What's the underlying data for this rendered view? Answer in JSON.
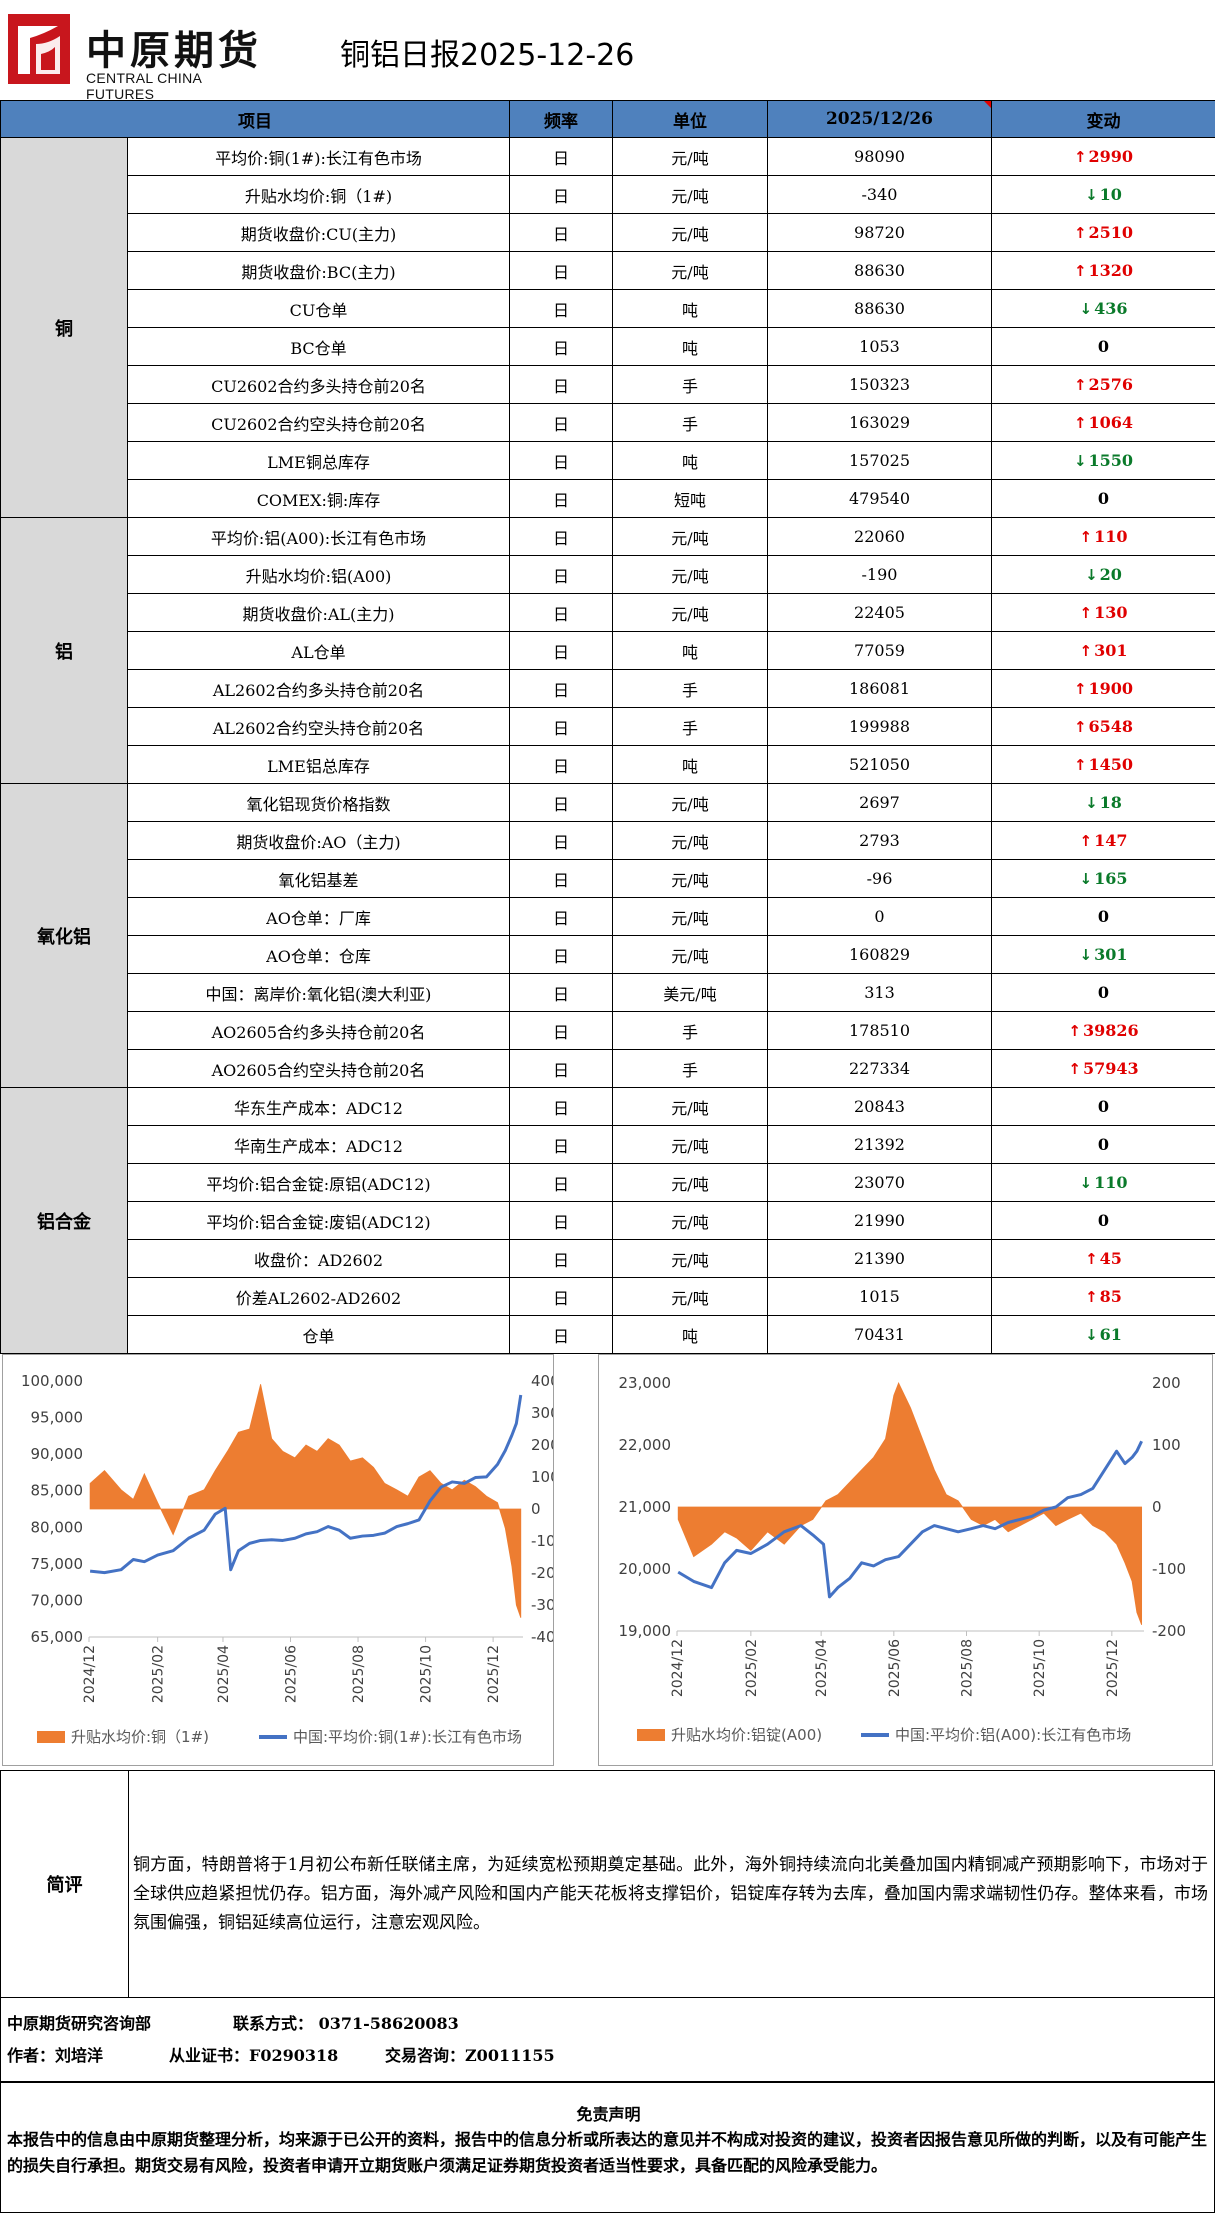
{
  "header": {
    "logo_cn": "中原期货",
    "logo_en": "CENTRAL CHINA FUTURES",
    "title": "铜铝日报2025-12-26"
  },
  "table": {
    "headers": [
      "项目",
      "频率",
      "单位",
      "2025/12/26",
      "变动"
    ],
    "groups": [
      {
        "name": "铜",
        "rows": [
          {
            "item": "平均价:铜(1#):长江有色市场",
            "freq": "日",
            "unit": "元/吨",
            "value": "98090",
            "change": "2990",
            "dir": "up"
          },
          {
            "item": "升贴水均价:铜（1#)",
            "freq": "日",
            "unit": "元/吨",
            "value": "-340",
            "change": "10",
            "dir": "down"
          },
          {
            "item": "期货收盘价:CU(主力)",
            "freq": "日",
            "unit": "元/吨",
            "value": "98720",
            "change": "2510",
            "dir": "up"
          },
          {
            "item": "期货收盘价:BC(主力)",
            "freq": "日",
            "unit": "元/吨",
            "value": "88630",
            "change": "1320",
            "dir": "up"
          },
          {
            "item": "CU仓单",
            "freq": "日",
            "unit": "吨",
            "value": "88630",
            "change": "436",
            "dir": "down"
          },
          {
            "item": "BC仓单",
            "freq": "日",
            "unit": "吨",
            "value": "1053",
            "change": "0",
            "dir": "flat"
          },
          {
            "item": "CU2602合约多头持仓前20名",
            "freq": "日",
            "unit": "手",
            "value": "150323",
            "change": "2576",
            "dir": "up"
          },
          {
            "item": "CU2602合约空头持仓前20名",
            "freq": "日",
            "unit": "手",
            "value": "163029",
            "change": "1064",
            "dir": "up"
          },
          {
            "item": "LME铜总库存",
            "freq": "日",
            "unit": "吨",
            "value": "157025",
            "change": "1550",
            "dir": "down"
          },
          {
            "item": "COMEX:铜:库存",
            "freq": "日",
            "unit": "短吨",
            "value": "479540",
            "change": "0",
            "dir": "flat"
          }
        ]
      },
      {
        "name": "铝",
        "rows": [
          {
            "item": "平均价:铝(A00):长江有色市场",
            "freq": "日",
            "unit": "元/吨",
            "value": "22060",
            "change": "110",
            "dir": "up"
          },
          {
            "item": "升贴水均价:铝(A00)",
            "freq": "日",
            "unit": "元/吨",
            "value": "-190",
            "change": "20",
            "dir": "down"
          },
          {
            "item": "期货收盘价:AL(主力)",
            "freq": "日",
            "unit": "元/吨",
            "value": "22405",
            "change": "130",
            "dir": "up"
          },
          {
            "item": "AL仓单",
            "freq": "日",
            "unit": "吨",
            "value": "77059",
            "change": "301",
            "dir": "up"
          },
          {
            "item": "AL2602合约多头持仓前20名",
            "freq": "日",
            "unit": "手",
            "value": "186081",
            "change": "1900",
            "dir": "up"
          },
          {
            "item": "AL2602合约空头持仓前20名",
            "freq": "日",
            "unit": "手",
            "value": "199988",
            "change": "6548",
            "dir": "up"
          },
          {
            "item": "LME铝总库存",
            "freq": "日",
            "unit": "吨",
            "value": "521050",
            "change": "1450",
            "dir": "up"
          }
        ]
      },
      {
        "name": "氧化铝",
        "rows": [
          {
            "item": "氧化铝现货价格指数",
            "freq": "日",
            "unit": "元/吨",
            "value": "2697",
            "change": "18",
            "dir": "down"
          },
          {
            "item": "期货收盘价:AO（主力)",
            "freq": "日",
            "unit": "元/吨",
            "value": "2793",
            "change": "147",
            "dir": "up"
          },
          {
            "item": "氧化铝基差",
            "freq": "日",
            "unit": "元/吨",
            "value": "-96",
            "change": "165",
            "dir": "down"
          },
          {
            "item": "AO仓单：厂库",
            "freq": "日",
            "unit": "元/吨",
            "value": "0",
            "change": "0",
            "dir": "flat"
          },
          {
            "item": "AO仓单：仓库",
            "freq": "日",
            "unit": "元/吨",
            "value": "160829",
            "change": "301",
            "dir": "down"
          },
          {
            "item": "中国：离岸价:氧化铝(澳大利亚)",
            "freq": "日",
            "unit": "美元/吨",
            "value": "313",
            "change": "0",
            "dir": "flat"
          },
          {
            "item": "AO2605合约多头持仓前20名",
            "freq": "日",
            "unit": "手",
            "value": "178510",
            "change": "39826",
            "dir": "up"
          },
          {
            "item": "AO2605合约空头持仓前20名",
            "freq": "日",
            "unit": "手",
            "value": "227334",
            "change": "57943",
            "dir": "up"
          }
        ]
      },
      {
        "name": "铝合金",
        "rows": [
          {
            "item": "华东生产成本：ADC12",
            "freq": "日",
            "unit": "元/吨",
            "value": "20843",
            "change": "0",
            "dir": "flat"
          },
          {
            "item": "华南生产成本：ADC12",
            "freq": "日",
            "unit": "元/吨",
            "value": "21392",
            "change": "0",
            "dir": "flat"
          },
          {
            "item": "平均价:铝合金锭:原铝(ADC12)",
            "freq": "日",
            "unit": "元/吨",
            "value": "23070",
            "change": "110",
            "dir": "down"
          },
          {
            "item": "平均价:铝合金锭:废铝(ADC12)",
            "freq": "日",
            "unit": "元/吨",
            "value": "21990",
            "change": "0",
            "dir": "flat"
          },
          {
            "item": "收盘价：AD2602",
            "freq": "日",
            "unit": "元/吨",
            "value": "21390",
            "change": "45",
            "dir": "up"
          },
          {
            "item": "价差AL2602-AD2602",
            "freq": "日",
            "unit": "元/吨",
            "value": "1015",
            "change": "85",
            "dir": "up"
          },
          {
            "item": "仓单",
            "freq": "日",
            "unit": "吨",
            "value": "70431",
            "change": "61",
            "dir": "down"
          }
        ]
      }
    ]
  },
  "chart_data": [
    {
      "type": "line",
      "x_ticks": [
        "2024/12",
        "2025/02",
        "2025/04",
        "2025/06",
        "2025/08",
        "2025/10",
        "2025/12"
      ],
      "y_left_ticks": [
        "100,000",
        "95,000",
        "90,000",
        "85,000",
        "80,000",
        "75,000",
        "70,000",
        "65,000"
      ],
      "y_right_ticks": [
        "400",
        "300",
        "200",
        "100",
        "0",
        "-100",
        "-200",
        "-300",
        "-400"
      ],
      "ylim_left": [
        65000,
        100000
      ],
      "ylim_right": [
        -400,
        400
      ],
      "legend_position": "bottom",
      "series": [
        {
          "name": "升贴水均价:铜（1#)",
          "type": "area",
          "axis": "right",
          "color": "#ed7d31",
          "x": [
            "2024-12-02",
            "2024-12-15",
            "2024-12-30",
            "2025-01-10",
            "2025-01-20",
            "2025-02-01",
            "2025-02-15",
            "2025-03-01",
            "2025-03-15",
            "2025-03-25",
            "2025-04-05",
            "2025-04-15",
            "2025-04-25",
            "2025-05-05",
            "2025-05-15",
            "2025-05-25",
            "2025-06-05",
            "2025-06-15",
            "2025-06-25",
            "2025-07-05",
            "2025-07-15",
            "2025-07-25",
            "2025-08-05",
            "2025-08-15",
            "2025-08-25",
            "2025-09-05",
            "2025-09-15",
            "2025-09-25",
            "2025-10-05",
            "2025-10-15",
            "2025-10-25",
            "2025-11-05",
            "2025-11-15",
            "2025-11-25",
            "2025-12-05",
            "2025-12-12",
            "2025-12-18",
            "2025-12-22",
            "2025-12-26"
          ],
          "y": [
            80,
            120,
            60,
            30,
            110,
            20,
            -80,
            40,
            60,
            120,
            180,
            240,
            250,
            390,
            220,
            180,
            160,
            200,
            180,
            220,
            200,
            150,
            160,
            130,
            80,
            60,
            40,
            100,
            120,
            80,
            60,
            90,
            70,
            40,
            20,
            -60,
            -180,
            -300,
            -340
          ]
        },
        {
          "name": "中国:平均价:铜(1#):长江有色市场",
          "type": "line",
          "axis": "left",
          "color": "#4472c4",
          "x": [
            "2024-12-02",
            "2024-12-15",
            "2024-12-30",
            "2025-01-10",
            "2025-01-20",
            "2025-02-01",
            "2025-02-15",
            "2025-03-01",
            "2025-03-15",
            "2025-03-25",
            "2025-04-03",
            "2025-04-08",
            "2025-04-15",
            "2025-04-25",
            "2025-05-05",
            "2025-05-15",
            "2025-05-25",
            "2025-06-05",
            "2025-06-15",
            "2025-06-25",
            "2025-07-05",
            "2025-07-15",
            "2025-07-25",
            "2025-08-05",
            "2025-08-15",
            "2025-08-25",
            "2025-09-05",
            "2025-09-15",
            "2025-09-25",
            "2025-10-05",
            "2025-10-15",
            "2025-10-25",
            "2025-11-05",
            "2025-11-15",
            "2025-11-25",
            "2025-12-05",
            "2025-12-12",
            "2025-12-18",
            "2025-12-22",
            "2025-12-26"
          ],
          "y": [
            74000,
            73800,
            74200,
            75600,
            75300,
            76200,
            76800,
            78500,
            79600,
            81800,
            82600,
            74200,
            76800,
            77800,
            78200,
            78300,
            78200,
            78500,
            79100,
            79400,
            80100,
            79600,
            78500,
            78800,
            78900,
            79200,
            80100,
            80500,
            81000,
            83600,
            85500,
            86200,
            86000,
            86800,
            86900,
            88600,
            90500,
            92600,
            94200,
            98090
          ]
        }
      ]
    },
    {
      "type": "line",
      "x_ticks": [
        "2024/12",
        "2025/02",
        "2025/04",
        "2025/06",
        "2025/08",
        "2025/10",
        "2025/12"
      ],
      "y_left_ticks": [
        "23,000",
        "22,000",
        "21,000",
        "20,000",
        "19,000"
      ],
      "y_right_ticks": [
        "200",
        "100",
        "0",
        "-100",
        "-200"
      ],
      "ylim_left": [
        19000,
        23000
      ],
      "ylim_right": [
        -200,
        200
      ],
      "legend_position": "bottom",
      "series": [
        {
          "name": "升贴水均价:铝锭(A00)",
          "type": "area",
          "axis": "right",
          "color": "#ed7d31",
          "x": [
            "2024-12-02",
            "2024-12-15",
            "2024-12-30",
            "2025-01-10",
            "2025-01-20",
            "2025-02-01",
            "2025-02-15",
            "2025-03-01",
            "2025-03-15",
            "2025-03-25",
            "2025-04-05",
            "2025-04-15",
            "2025-04-25",
            "2025-05-05",
            "2025-05-15",
            "2025-05-25",
            "2025-06-01",
            "2025-06-05",
            "2025-06-15",
            "2025-06-25",
            "2025-07-05",
            "2025-07-15",
            "2025-07-25",
            "2025-08-05",
            "2025-08-15",
            "2025-08-25",
            "2025-09-05",
            "2025-09-15",
            "2025-09-25",
            "2025-10-05",
            "2025-10-15",
            "2025-10-25",
            "2025-11-05",
            "2025-11-15",
            "2025-11-25",
            "2025-12-05",
            "2025-12-12",
            "2025-12-18",
            "2025-12-22",
            "2025-12-26"
          ],
          "y": [
            -20,
            -80,
            -60,
            -40,
            -50,
            -70,
            -40,
            -60,
            -30,
            -20,
            10,
            20,
            40,
            60,
            80,
            110,
            180,
            200,
            160,
            110,
            60,
            20,
            10,
            -20,
            -30,
            -20,
            -40,
            -30,
            -20,
            -10,
            -30,
            -20,
            -10,
            -30,
            -40,
            -60,
            -90,
            -120,
            -170,
            -190
          ]
        },
        {
          "name": "中国:平均价:铝(A00):长江有色市场",
          "type": "line",
          "axis": "left",
          "color": "#4472c4",
          "x": [
            "2024-12-02",
            "2024-12-15",
            "2024-12-30",
            "2025-01-10",
            "2025-01-20",
            "2025-02-01",
            "2025-02-15",
            "2025-03-01",
            "2025-03-15",
            "2025-03-25",
            "2025-04-03",
            "2025-04-08",
            "2025-04-15",
            "2025-04-25",
            "2025-05-05",
            "2025-05-15",
            "2025-05-25",
            "2025-06-05",
            "2025-06-15",
            "2025-06-25",
            "2025-07-05",
            "2025-07-15",
            "2025-07-25",
            "2025-08-05",
            "2025-08-15",
            "2025-08-25",
            "2025-09-05",
            "2025-09-15",
            "2025-09-25",
            "2025-10-05",
            "2025-10-15",
            "2025-10-25",
            "2025-11-05",
            "2025-11-15",
            "2025-11-25",
            "2025-12-05",
            "2025-12-12",
            "2025-12-18",
            "2025-12-22",
            "2025-12-26"
          ],
          "y": [
            19950,
            19800,
            19700,
            20100,
            20300,
            20250,
            20400,
            20600,
            20700,
            20550,
            20400,
            19550,
            19700,
            19850,
            20100,
            20050,
            20150,
            20200,
            20400,
            20600,
            20700,
            20650,
            20600,
            20650,
            20700,
            20650,
            20750,
            20800,
            20850,
            20950,
            21000,
            21150,
            21200,
            21300,
            21600,
            21900,
            21700,
            21800,
            21900,
            22060
          ]
        }
      ]
    }
  ],
  "comment": {
    "label": "简评",
    "text": "铜方面，特朗普将于1月初公布新任联储主席，为延续宽松预期奠定基础。此外，海外铜持续流向北美叠加国内精铜减产预期影响下，市场对于全球供应趋紧担忧仍存。铝方面，海外减产风险和国内产能天花板将支撑铝价，铝锭库存转为去库，叠加国内需求端韧性仍存。整体来看，市场氛围偏强，铜铝延续高位运行，注意宏观风险。"
  },
  "info": {
    "dept": "中原期货研究咨询部",
    "contact": "联系方式： 0371-58620083",
    "author": "作者：刘培洋",
    "cert": "从业证书：F0290318",
    "consult": "交易咨询：Z0011155"
  },
  "disclaimer": {
    "title": "免责声明",
    "text": "本报告中的信息由中原期货整理分析，均来源于已公开的资料，报告中的信息分析或所表达的意见并不构成对投资的建议，投资者因报告意见所做的判断，以及有可能产生的损失自行承担。期货交易有风险，投资者申请开立期货账户须满足证券期货投资者适当性要求，具备匹配的风险承受能力。"
  },
  "icons": {
    "logo": "ccf-logo-icon",
    "up": "arrow-up-icon",
    "down": "arrow-down-icon"
  },
  "colors": {
    "header_bg": "#4f81bd",
    "category_bg": "#d9d9d9",
    "up": "#e00000",
    "down": "#0a7a2a",
    "premium_area": "#ed7d31",
    "price_line": "#4472c4"
  }
}
